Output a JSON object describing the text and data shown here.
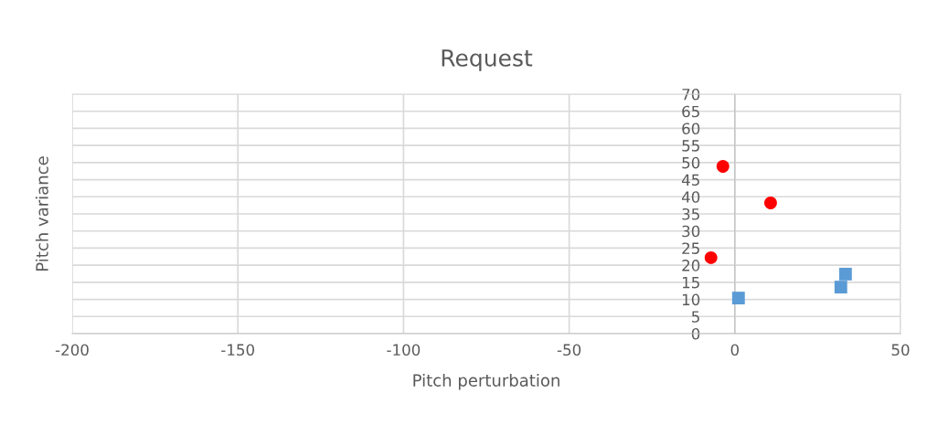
{
  "chart_data": {
    "type": "scatter",
    "title": "Request",
    "xlabel": "Pitch perturbation",
    "ylabel": "Pitch variance",
    "xlim": [
      -200,
      50
    ],
    "xticks": [
      -200,
      -150,
      -100,
      -50,
      0,
      50
    ],
    "ylim": [
      0,
      70
    ],
    "yticks": [
      0,
      5,
      10,
      15,
      20,
      25,
      30,
      35,
      40,
      45,
      50,
      55,
      60,
      65,
      70
    ],
    "grid": true,
    "legend": false,
    "series": [
      {
        "color": "#ff0000",
        "marker": "circle",
        "x": [
          -3.6,
          10.8,
          -7.2
        ],
        "values": [
          48.9,
          38.2,
          22.2
        ]
      },
      {
        "color": "#5b9bd5",
        "marker": "square",
        "x": [
          1.1,
          32,
          33.4
        ],
        "values": [
          10.4,
          13.6,
          17.4
        ]
      }
    ]
  }
}
